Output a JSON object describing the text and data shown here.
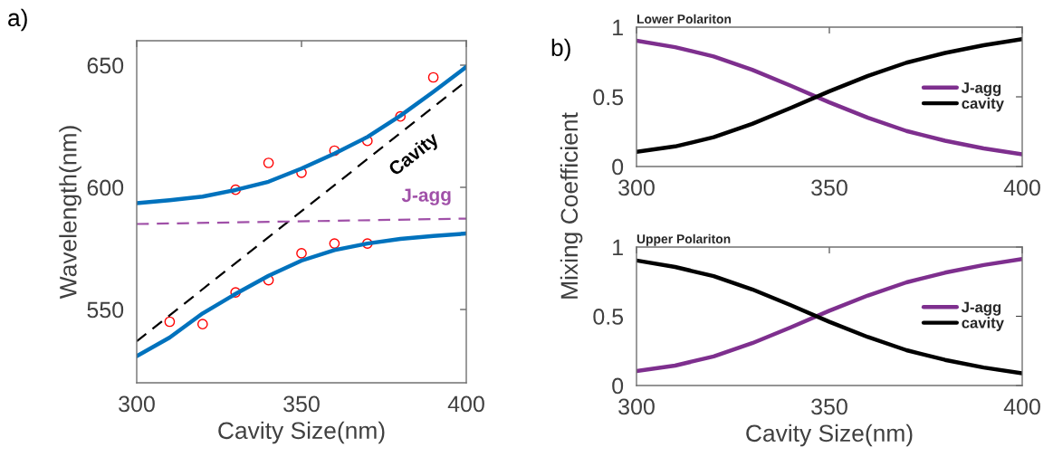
{
  "chart_data": [
    {
      "type": "line",
      "xlabel": "Cavity Size(nm)",
      "ylabel": "Wavelength(nm)",
      "xlim": [
        300,
        400
      ],
      "ylim": [
        520,
        660
      ],
      "xticks": [
        300,
        350,
        400
      ],
      "yticks": [
        550,
        600,
        650
      ],
      "annotations": [
        "a)"
      ],
      "series": [
        {
          "type": "line",
          "color": "#0072bd",
          "line_style": "solid",
          "x": [
            300,
            310,
            320,
            330,
            340,
            350,
            360,
            370,
            380,
            390,
            400
          ],
          "values": [
            593.5,
            594.7,
            596.2,
            598.9,
            602.3,
            607.7,
            613.8,
            620.6,
            629.3,
            639.1,
            649.3
          ]
        },
        {
          "type": "line",
          "color": "#0072bd",
          "line_style": "solid",
          "x": [
            300,
            310,
            320,
            330,
            340,
            350,
            360,
            370,
            380,
            390,
            400
          ],
          "values": [
            530.9,
            538.5,
            548.4,
            556.4,
            563.8,
            570,
            574.3,
            577,
            578.9,
            580.1,
            581.1
          ]
        },
        {
          "type": "line",
          "name": "Cavity",
          "color": "#000000",
          "line_style": "dashed",
          "x": [
            300,
            400
          ],
          "values": [
            537,
            643.5
          ]
        },
        {
          "type": "line",
          "name": "J-agg",
          "color": "#a050a8",
          "line_style": "dashed",
          "x": [
            300,
            400
          ],
          "values": [
            585,
            587.2
          ]
        },
        {
          "type": "scatter",
          "marker": "circle",
          "color": "#ff0000",
          "x": [
            330,
            340,
            350,
            360,
            370,
            380,
            390,
            310,
            320,
            330,
            340,
            350,
            360,
            370
          ],
          "values": [
            599,
            610,
            606,
            615,
            619,
            629,
            645,
            545,
            544,
            557,
            562,
            573,
            577,
            577
          ]
        }
      ]
    },
    {
      "type": "line",
      "title": "Lower Polariton",
      "ylabel": "Mixing Coefficient",
      "xlim": [
        300,
        400
      ],
      "ylim": [
        0,
        1
      ],
      "xticks": [
        300,
        350,
        400
      ],
      "yticks": [
        0,
        0.5,
        1
      ],
      "legend": "right",
      "annotations": [
        "b)"
      ],
      "x": [
        300,
        310,
        320,
        330,
        340,
        350,
        360,
        370,
        380,
        390,
        400
      ],
      "series": [
        {
          "name": "J-agg",
          "color": "#7e2f8e",
          "values": [
            0.903,
            0.856,
            0.79,
            0.694,
            0.58,
            0.46,
            0.35,
            0.255,
            0.185,
            0.13,
            0.088
          ]
        },
        {
          "name": "cavity",
          "color": "#000000",
          "values": [
            0.105,
            0.144,
            0.21,
            0.306,
            0.42,
            0.54,
            0.65,
            0.745,
            0.815,
            0.87,
            0.914
          ]
        }
      ]
    },
    {
      "type": "line",
      "title": "Upper Polariton",
      "xlabel": "Cavity Size(nm)",
      "xlim": [
        300,
        400
      ],
      "ylim": [
        0,
        1
      ],
      "xticks": [
        300,
        350,
        400
      ],
      "yticks": [
        0,
        0.5,
        1
      ],
      "legend": "right",
      "x": [
        300,
        310,
        320,
        330,
        340,
        350,
        360,
        370,
        380,
        390,
        400
      ],
      "series": [
        {
          "name": "J-agg",
          "color": "#7e2f8e",
          "values": [
            0.105,
            0.144,
            0.21,
            0.306,
            0.42,
            0.54,
            0.65,
            0.745,
            0.815,
            0.87,
            0.914
          ]
        },
        {
          "name": "cavity",
          "color": "#000000",
          "values": [
            0.903,
            0.856,
            0.79,
            0.694,
            0.58,
            0.46,
            0.35,
            0.255,
            0.185,
            0.13,
            0.088
          ]
        }
      ]
    }
  ]
}
